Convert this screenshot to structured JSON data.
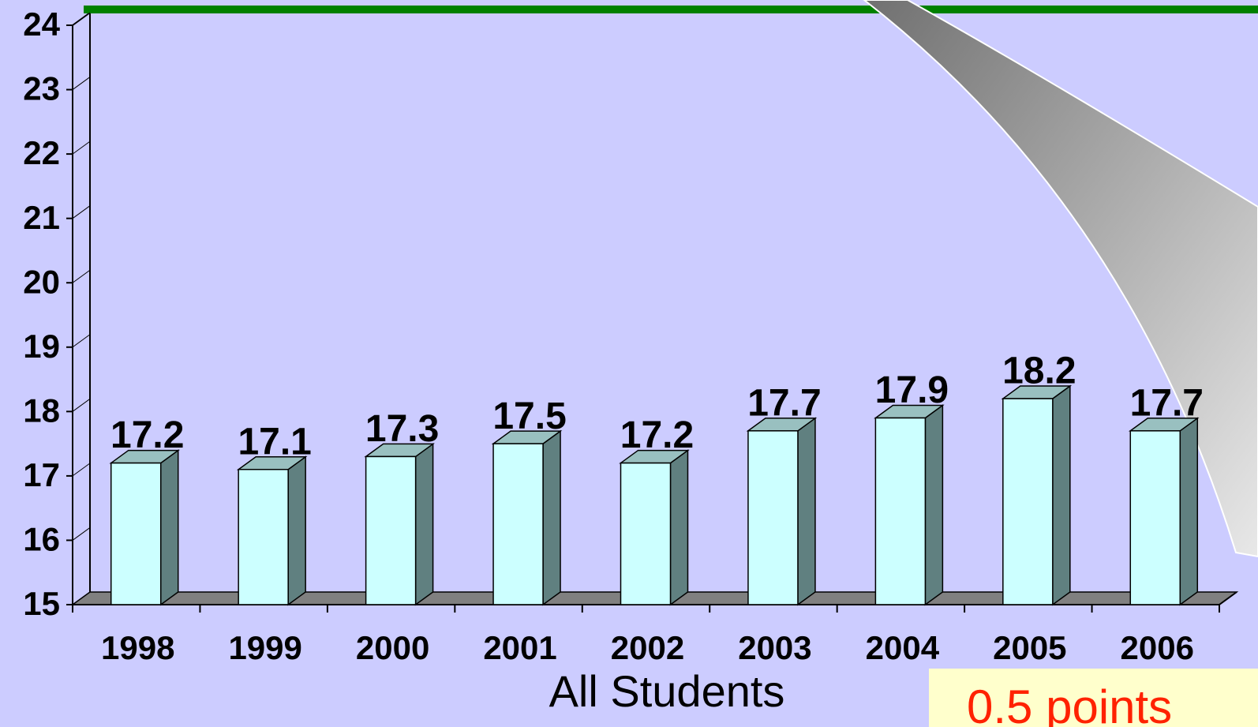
{
  "chart_data": {
    "type": "bar3d",
    "x_label": "All Students",
    "categories": [
      "1998",
      "1999",
      "2000",
      "2001",
      "2002",
      "2003",
      "2004",
      "2005",
      "2006"
    ],
    "values": [
      17.2,
      17.1,
      17.3,
      17.5,
      17.2,
      17.7,
      17.9,
      18.2,
      17.7
    ],
    "color": "#ccffff",
    "ylim": [
      15,
      24
    ],
    "yticks": [
      15,
      16,
      17,
      18,
      19,
      20,
      21,
      22,
      23,
      24
    ],
    "reference_value": 24,
    "reference_color": "#008000",
    "annotation": "0.5 points"
  }
}
